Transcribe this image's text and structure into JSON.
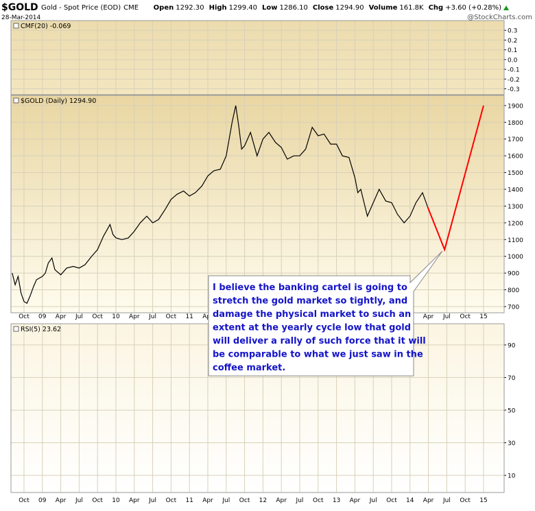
{
  "header": {
    "symbol": "$GOLD",
    "description": "Gold - Spot Price (EOD)",
    "exchange": "CME",
    "date": "28-Mar-2014",
    "source": "@StockCharts.com",
    "quote": [
      {
        "label": "Open",
        "value": "1292.30"
      },
      {
        "label": "High",
        "value": "1299.40"
      },
      {
        "label": "Low",
        "value": "1286.10"
      },
      {
        "label": "Close",
        "value": "1294.90"
      },
      {
        "label": "Volume",
        "value": "161.8K"
      },
      {
        "label": "Chg",
        "value": "+3.60 (+0.28%)"
      }
    ]
  },
  "chart_data": [
    {
      "type": "line",
      "title": "CMF(20) -0.069",
      "ylim": [
        -0.36,
        0.4
      ],
      "yticks": [
        0.3,
        0.2,
        0.1,
        {
          "value": 0,
          "label": "0.0"
        },
        -0.1,
        -0.2,
        -0.3
      ],
      "grid": true
    },
    {
      "type": "line",
      "title": "$GOLD (Daily) 1294.90",
      "grid": true,
      "xlim": [
        2008.573,
        2015.28
      ],
      "xticks": [
        {
          "value": 2008.75,
          "label": "Oct"
        },
        {
          "value": 2009.0,
          "label": "09"
        },
        {
          "value": 2009.25,
          "label": "Apr"
        },
        {
          "value": 2009.5,
          "label": "Jul"
        },
        {
          "value": 2009.75,
          "label": "Oct"
        },
        {
          "value": 2010.0,
          "label": "10"
        },
        {
          "value": 2010.25,
          "label": "Apr"
        },
        {
          "value": 2010.5,
          "label": "Jul"
        },
        {
          "value": 2010.75,
          "label": "Oct"
        },
        {
          "value": 2011.0,
          "label": "11"
        },
        {
          "value": 2011.25,
          "label": "Apr"
        },
        {
          "value": 2011.5,
          "label": "Jul"
        },
        {
          "value": 2011.75,
          "label": "Oct"
        },
        {
          "value": 2012.0,
          "label": "12"
        },
        {
          "value": 2012.25,
          "label": "Apr"
        },
        {
          "value": 2012.5,
          "label": "Jul"
        },
        {
          "value": 2012.75,
          "label": "Oct"
        },
        {
          "value": 2013.0,
          "label": "13"
        },
        {
          "value": 2013.25,
          "label": "Apr"
        },
        {
          "value": 2013.5,
          "label": "Jul"
        },
        {
          "value": 2013.75,
          "label": "Oct"
        },
        {
          "value": 2014.0,
          "label": "14"
        },
        {
          "value": 2014.25,
          "label": "Apr"
        },
        {
          "value": 2014.5,
          "label": "Jul"
        },
        {
          "value": 2014.75,
          "label": "Oct"
        },
        {
          "value": 2015.0,
          "label": "15"
        }
      ],
      "ylim": [
        663,
        1961
      ],
      "yticks": [
        1900,
        1800,
        1700,
        1600,
        1500,
        1400,
        1300,
        1200,
        1100,
        1000,
        900,
        800,
        700
      ],
      "series": [
        {
          "color": "#000000",
          "x": [
            2008.59,
            2008.63,
            2008.67,
            2008.71,
            2008.75,
            2008.79,
            2008.83,
            2008.88,
            2008.92,
            2008.96,
            2009.0,
            2009.04,
            2009.08,
            2009.13,
            2009.17,
            2009.25,
            2009.33,
            2009.42,
            2009.5,
            2009.58,
            2009.67,
            2009.75,
            2009.83,
            2009.92,
            2009.96,
            2010.0,
            2010.08,
            2010.17,
            2010.25,
            2010.33,
            2010.42,
            2010.5,
            2010.58,
            2010.67,
            2010.75,
            2010.83,
            2010.92,
            2011.0,
            2011.08,
            2011.17,
            2011.25,
            2011.33,
            2011.42,
            2011.5,
            2011.58,
            2011.63,
            2011.67,
            2011.71,
            2011.75,
            2011.83,
            2011.92,
            2012.0,
            2012.08,
            2012.17,
            2012.25,
            2012.33,
            2012.42,
            2012.5,
            2012.58,
            2012.67,
            2012.75,
            2012.83,
            2012.92,
            2013.0,
            2013.08,
            2013.17,
            2013.25,
            2013.29,
            2013.33,
            2013.42,
            2013.5,
            2013.58,
            2013.67,
            2013.75,
            2013.83,
            2013.92,
            2014.0,
            2014.08,
            2014.17,
            2014.24
          ],
          "values": [
            900,
            830,
            880,
            780,
            730,
            720,
            760,
            820,
            860,
            870,
            880,
            900,
            960,
            990,
            920,
            890,
            930,
            940,
            930,
            950,
            1000,
            1040,
            1120,
            1190,
            1130,
            1110,
            1100,
            1110,
            1150,
            1200,
            1240,
            1200,
            1220,
            1280,
            1340,
            1370,
            1390,
            1360,
            1380,
            1420,
            1480,
            1510,
            1520,
            1600,
            1800,
            1900,
            1780,
            1640,
            1660,
            1740,
            1600,
            1700,
            1740,
            1680,
            1650,
            1580,
            1600,
            1600,
            1640,
            1770,
            1720,
            1730,
            1670,
            1670,
            1600,
            1590,
            1470,
            1380,
            1400,
            1240,
            1320,
            1400,
            1330,
            1320,
            1250,
            1200,
            1240,
            1320,
            1380,
            1295
          ]
        },
        {
          "color": "#ff0000",
          "x": [
            2014.24,
            2014.47,
            2015.0
          ],
          "values": [
            1295,
            1040,
            1900
          ]
        }
      ],
      "annotation": {
        "lines": [
          "I believe the banking cartel is going to",
          "stretch the gold market so tightly, and",
          "damage the physical market to such an",
          "extent at the yearly cycle low that gold",
          "will deliver a rally of such force that it will",
          "be comparable to what we just saw in the",
          "coffee market."
        ]
      }
    },
    {
      "type": "line",
      "title": "RSI(5) 23.62",
      "ylim": [
        -0.5,
        103
      ],
      "yticks": [
        90,
        70,
        50,
        30,
        10
      ],
      "grid": true
    }
  ]
}
